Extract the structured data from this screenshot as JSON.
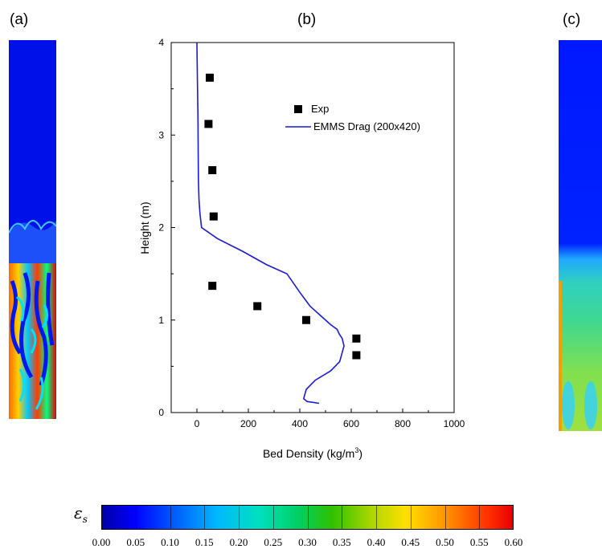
{
  "panels": {
    "a": {
      "label": "(a)"
    },
    "b": {
      "label": "(b)"
    },
    "c": {
      "label": "(c)"
    }
  },
  "chart_data": {
    "type": "line",
    "xlabel": "Bed Density (kg/m",
    "xlabel_sup": "3",
    "xlabel_end": ")",
    "ylabel": "Height (m)",
    "xlim": [
      -100,
      1000
    ],
    "ylim": [
      0,
      4
    ],
    "xticks": [
      0,
      200,
      400,
      600,
      800,
      1000
    ],
    "yticks": [
      0,
      1,
      2,
      3,
      4
    ],
    "legend_position": "top-right",
    "series": [
      {
        "name": "Exp",
        "kind": "scatter",
        "marker": "square",
        "color": "#000000",
        "x": [
          50,
          45,
          60,
          65,
          60,
          235,
          425,
          620,
          620
        ],
        "y": [
          3.62,
          3.12,
          2.62,
          2.12,
          1.37,
          1.15,
          1.0,
          0.8,
          0.62
        ]
      },
      {
        "name": "EMMS Drag (200x420)",
        "kind": "line",
        "color": "#1a1ad9",
        "x": [
          0,
          2,
          4,
          5,
          6,
          8,
          12,
          18,
          80,
          180,
          270,
          350,
          400,
          440,
          480,
          520,
          545,
          553,
          565,
          572,
          565,
          560,
          555,
          520,
          460,
          425,
          415,
          428,
          475
        ],
        "y": [
          4.0,
          3.6,
          3.2,
          2.8,
          2.5,
          2.3,
          2.15,
          2.0,
          1.88,
          1.74,
          1.6,
          1.5,
          1.3,
          1.15,
          1.05,
          0.95,
          0.9,
          0.85,
          0.8,
          0.72,
          0.65,
          0.6,
          0.55,
          0.45,
          0.35,
          0.25,
          0.15,
          0.12,
          0.1
        ]
      }
    ]
  },
  "colorbar": {
    "title": "ε",
    "title_sub": "s",
    "ticks": [
      "0.00",
      "0.05",
      "0.10",
      "0.15",
      "0.20",
      "0.25",
      "0.30",
      "0.35",
      "0.40",
      "0.45",
      "0.50",
      "0.55",
      "0.60"
    ]
  }
}
